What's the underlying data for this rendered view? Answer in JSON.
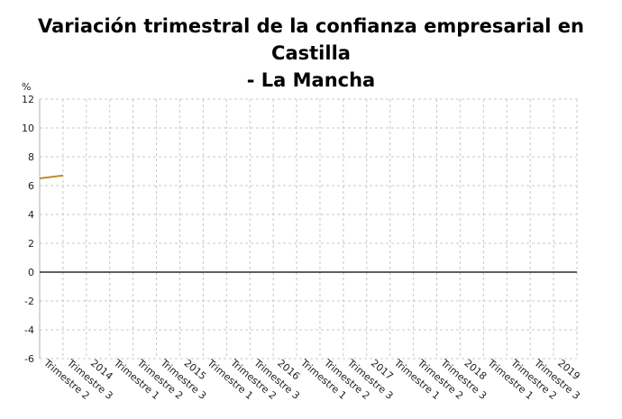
{
  "chart_data": {
    "type": "line",
    "title_lines": [
      "Variación trimestral de la confianza empresarial en Castilla",
      "- La Mancha"
    ],
    "ylabel": "%",
    "xlabel": "",
    "ylim": [
      -6,
      12
    ],
    "yticks": [
      12,
      10,
      8,
      6,
      4,
      2,
      0,
      -2,
      -4,
      -6
    ],
    "categories": [
      "Trimestre 2",
      "Trimestre 3",
      "2014",
      "Trimestre 1",
      "Trimestre 2",
      "Trimestre 3",
      "2015",
      "Trimestre 1",
      "Trimestre 2",
      "Trimestre 3",
      "2016",
      "Trimestre 1",
      "Trimestre 2",
      "Trimestre 3",
      "2017",
      "Trimestre 1",
      "Trimestre 2",
      "Trimestre 3",
      "2018",
      "Trimestre 1",
      "Trimestre 2",
      "Trimestre 3",
      "2019"
    ],
    "series": [
      {
        "values": [
          6.5,
          6.7,
          null,
          null,
          null,
          null,
          null,
          null,
          null,
          null,
          null,
          null,
          null,
          null,
          null,
          null,
          null,
          null,
          null,
          null,
          null,
          null,
          null
        ],
        "color": "#c08a2e"
      }
    ],
    "grid": true,
    "zero_line_color": "#000000"
  }
}
